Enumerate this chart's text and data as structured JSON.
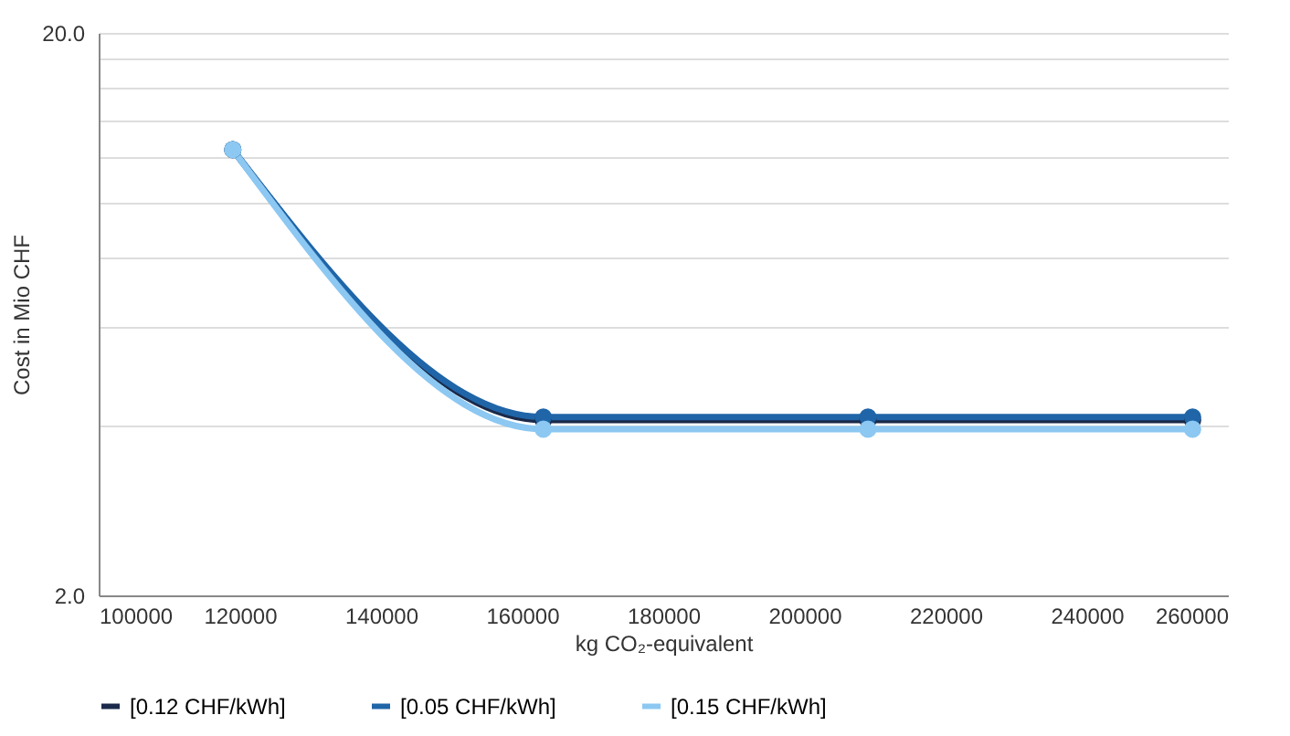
{
  "chart_data": {
    "type": "line",
    "xlabel": "kg CO₂-equivalent",
    "ylabel": "Cost in Mio CHF",
    "x": [
      119000,
      163000,
      209000,
      255000
    ],
    "series": [
      {
        "name": "[0.12 CHF/kWh]",
        "color": "#1b2a4a",
        "values": [
          12.4,
          4.1,
          4.1,
          4.1
        ]
      },
      {
        "name": "[0.05 CHF/kWh]",
        "color": "#1f65a8",
        "values": [
          12.4,
          4.15,
          4.15,
          4.15
        ]
      },
      {
        "name": "[0.15 CHF/kWh]",
        "color": "#8cc8f2",
        "values": [
          12.4,
          3.95,
          3.95,
          3.95
        ]
      }
    ],
    "xlim": [
      100000,
      260000
    ],
    "xticks": [
      100000,
      120000,
      140000,
      160000,
      180000,
      200000,
      220000,
      240000,
      260000
    ],
    "ylim": [
      2,
      20
    ],
    "yticks": [
      {
        "value": 2,
        "label": "2.0"
      },
      {
        "value": 4,
        "label": null
      },
      {
        "value": 6,
        "label": null
      },
      {
        "value": 8,
        "label": null
      },
      {
        "value": 10,
        "label": null
      },
      {
        "value": 12,
        "label": null
      },
      {
        "value": 14,
        "label": null
      },
      {
        "value": 16,
        "label": null
      },
      {
        "value": 18,
        "label": null
      },
      {
        "value": 20,
        "label": "20.0"
      }
    ],
    "log": "y",
    "grid": "y",
    "legend": "bottom",
    "marker": "circle",
    "line_style": "solid"
  }
}
